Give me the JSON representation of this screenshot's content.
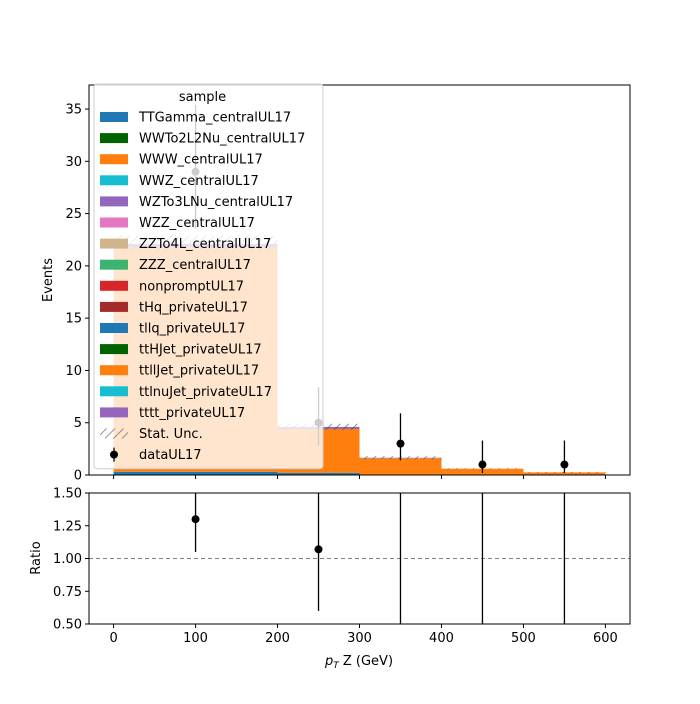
{
  "chart_data": [
    {
      "type": "bar",
      "stacked": true,
      "ylabel": "Events",
      "ylim": [
        0,
        37.3
      ],
      "yticks": [
        0,
        5,
        10,
        15,
        20,
        25,
        30,
        35
      ],
      "xlim": [
        -30,
        630
      ],
      "xticks": [
        0,
        100,
        200,
        300,
        400,
        500,
        600
      ],
      "bins": [
        [
          0,
          200
        ],
        [
          200,
          300
        ],
        [
          300,
          400
        ],
        [
          400,
          500
        ],
        [
          500,
          600
        ]
      ],
      "series": [
        {
          "name": "TTGamma_centralUL17",
          "color": "#1f77b4",
          "values": [
            0.3,
            0.2,
            0,
            0,
            0
          ]
        },
        {
          "name": "WWTo2L2Nu_centralUL17",
          "color": "#006400",
          "values": [
            0,
            0,
            0,
            0,
            0
          ]
        },
        {
          "name": "WWW_centralUL17",
          "color": "#ff7f0e",
          "values": [
            21.5,
            4.2,
            1.6,
            0.6,
            0.25
          ]
        },
        {
          "name": "WWZ_centralUL17",
          "color": "#17becf",
          "values": [
            0,
            0,
            0,
            0,
            0
          ]
        },
        {
          "name": "WZTo3LNu_centralUL17",
          "color": "#9467bd",
          "values": [
            0.3,
            0.2,
            0.05,
            0,
            0
          ]
        },
        {
          "name": "WZZ_centralUL17",
          "color": "#e377c2",
          "values": [
            0,
            0,
            0,
            0,
            0
          ]
        },
        {
          "name": "ZZTo4L_centralUL17",
          "color": "#d2b48c",
          "values": [
            0,
            0,
            0,
            0,
            0
          ]
        },
        {
          "name": "ZZZ_centralUL17",
          "color": "#3cb371",
          "values": [
            0,
            0,
            0,
            0,
            0
          ]
        },
        {
          "name": "nonpromptUL17",
          "color": "#d62728",
          "values": [
            0,
            0,
            0,
            0,
            0
          ]
        },
        {
          "name": "tHq_privateUL17",
          "color": "#a52a2a",
          "values": [
            0,
            0,
            0,
            0,
            0
          ]
        },
        {
          "name": "tllq_privateUL17",
          "color": "#1f77b4",
          "values": [
            0,
            0,
            0,
            0,
            0
          ]
        },
        {
          "name": "ttHJet_privateUL17",
          "color": "#006400",
          "values": [
            0,
            0,
            0,
            0,
            0
          ]
        },
        {
          "name": "ttllJet_privateUL17",
          "color": "#ff7f0e",
          "values": [
            0,
            0,
            0,
            0,
            0
          ]
        },
        {
          "name": "ttlnuJet_privateUL17",
          "color": "#17becf",
          "values": [
            0,
            0,
            0,
            0,
            0
          ]
        },
        {
          "name": "tttt_privateUL17",
          "color": "#9467bd",
          "values": [
            0,
            0,
            0,
            0,
            0
          ]
        }
      ],
      "stat_unc_label": "Stat. Unc.",
      "stat_unc": [
        0.8,
        0.3,
        0.15,
        0.05,
        0.03
      ],
      "data": {
        "name": "dataUL17",
        "x": [
          100,
          250,
          350,
          450,
          550
        ],
        "y": [
          29,
          5,
          3,
          1,
          1
        ],
        "yerr_low": [
          5.4,
          2.2,
          1.6,
          0.8,
          0.8
        ],
        "yerr_high": [
          6.4,
          3.4,
          2.9,
          2.3,
          2.3
        ]
      },
      "legend": {
        "title": "sample",
        "position": "top-left"
      }
    },
    {
      "type": "scatter",
      "xlabel": "p_T Z (GeV)",
      "ylabel": "Ratio",
      "ylim": [
        0.5,
        1.5
      ],
      "yticks": [
        "0.50",
        "0.75",
        "1.00",
        "1.25",
        "1.50"
      ],
      "xlim": [
        -30,
        630
      ],
      "xticks": [
        0,
        100,
        200,
        300,
        400,
        500,
        600
      ],
      "reference_line": 1.0,
      "x": [
        100,
        250,
        350,
        450,
        550
      ],
      "y": [
        1.3,
        1.07,
        null,
        null,
        null
      ],
      "yerr_low": [
        0.25,
        0.47,
        1.0,
        1.0,
        1.0
      ],
      "yerr_high": [
        0.3,
        0.7,
        1.0,
        1.0,
        1.0
      ]
    }
  ]
}
